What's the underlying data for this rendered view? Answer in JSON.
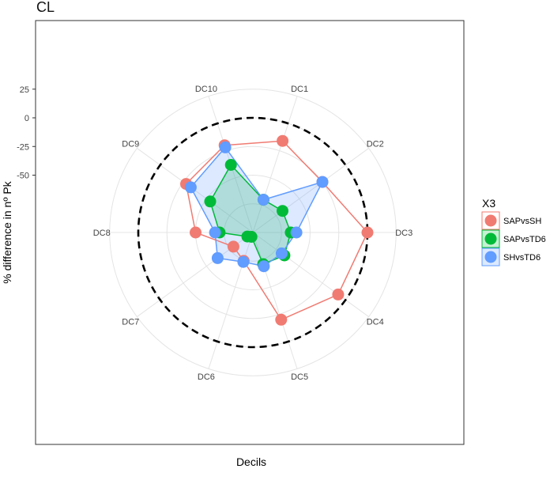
{
  "chart_data": {
    "type": "radar",
    "title": "CL",
    "xlabel": "Decils",
    "ylabel": "% difference in nº Pk",
    "ylim": [
      -100,
      40
    ],
    "yticks": [
      25,
      0,
      -25,
      -50
    ],
    "ring_values": [
      25,
      0,
      -25,
      -50,
      -75,
      -100
    ],
    "categories": [
      "DC1",
      "DC2",
      "DC3",
      "DC4",
      "DC5",
      "DC6",
      "DC7",
      "DC8",
      "DC9",
      "DC10"
    ],
    "reference_ring": 0,
    "grid": true,
    "legend_position": "right",
    "legend_title": "X3",
    "series": [
      {
        "name": "SAPvsSH",
        "color": "#F07B72",
        "fill": "none",
        "values": [
          -16,
          -25,
          0,
          -8,
          -20,
          -74,
          -79,
          -50,
          -28,
          -20
        ]
      },
      {
        "name": "SAPvsTD6",
        "color": "#00BA38",
        "fill": "#00BA38",
        "values": [
          -70,
          -68,
          -67,
          -66,
          -71,
          -96,
          -94,
          -71,
          -54,
          -38
        ]
      },
      {
        "name": "SHvsTD6",
        "color": "#619CFF",
        "fill": "#619CFF",
        "values": [
          -70,
          -25,
          -62,
          -69,
          -69,
          -73,
          -62,
          -67,
          -33,
          -22
        ]
      }
    ]
  }
}
